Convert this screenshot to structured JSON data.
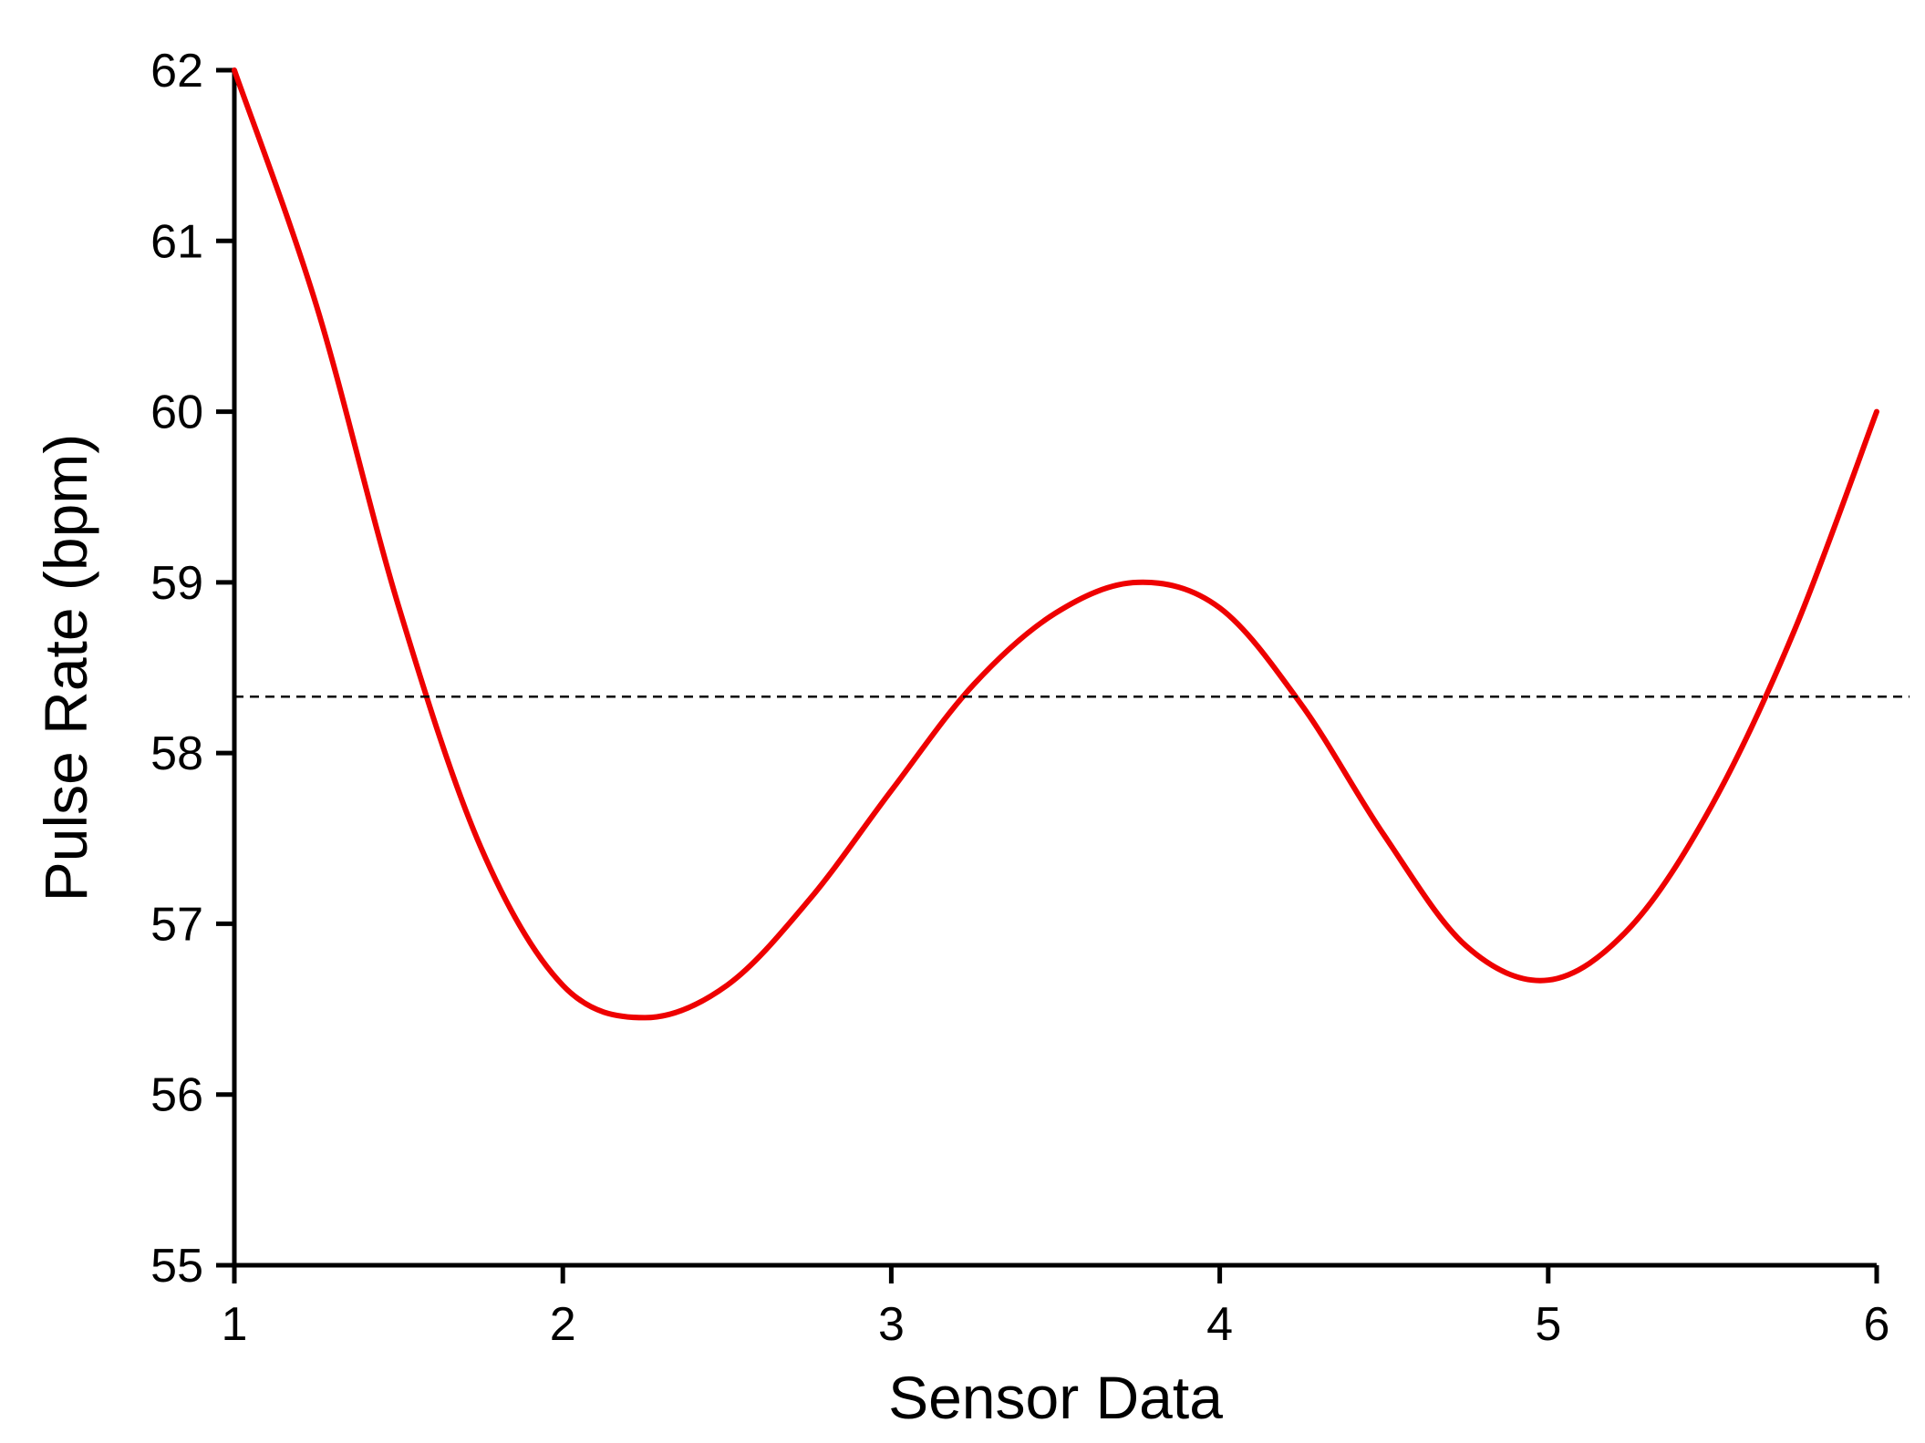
{
  "chart_data": {
    "type": "line",
    "title": "",
    "xlabel": "Sensor Data",
    "ylabel": "Pulse Rate (bpm)",
    "xlim": [
      1,
      6
    ],
    "ylim": [
      55,
      62
    ],
    "xticks": [
      "1",
      "2",
      "3",
      "4",
      "5",
      "6"
    ],
    "yticks": [
      "55",
      "56",
      "57",
      "58",
      "59",
      "60",
      "61",
      "62"
    ],
    "grid": false,
    "legend": "none",
    "series": [
      {
        "color": "#ee0000",
        "style": "solid",
        "x": [
          1.0,
          1.25,
          1.5,
          1.75,
          2.0,
          2.25,
          2.5,
          2.75,
          3.0,
          3.25,
          3.5,
          3.75,
          4.0,
          4.25,
          4.5,
          4.75,
          5.0,
          5.25,
          5.5,
          5.75,
          6.0
        ],
        "y": [
          62.0,
          60.62,
          58.86,
          57.45,
          56.64,
          56.45,
          56.64,
          57.14,
          57.78,
          58.4,
          58.82,
          59.0,
          58.85,
          58.28,
          57.52,
          56.87,
          56.67,
          56.98,
          57.7,
          58.72,
          60.0
        ]
      },
      {
        "color": "#000000",
        "style": "dashed",
        "x": [
          1.0,
          6.1
        ],
        "y": [
          58.33,
          58.33
        ]
      }
    ]
  }
}
